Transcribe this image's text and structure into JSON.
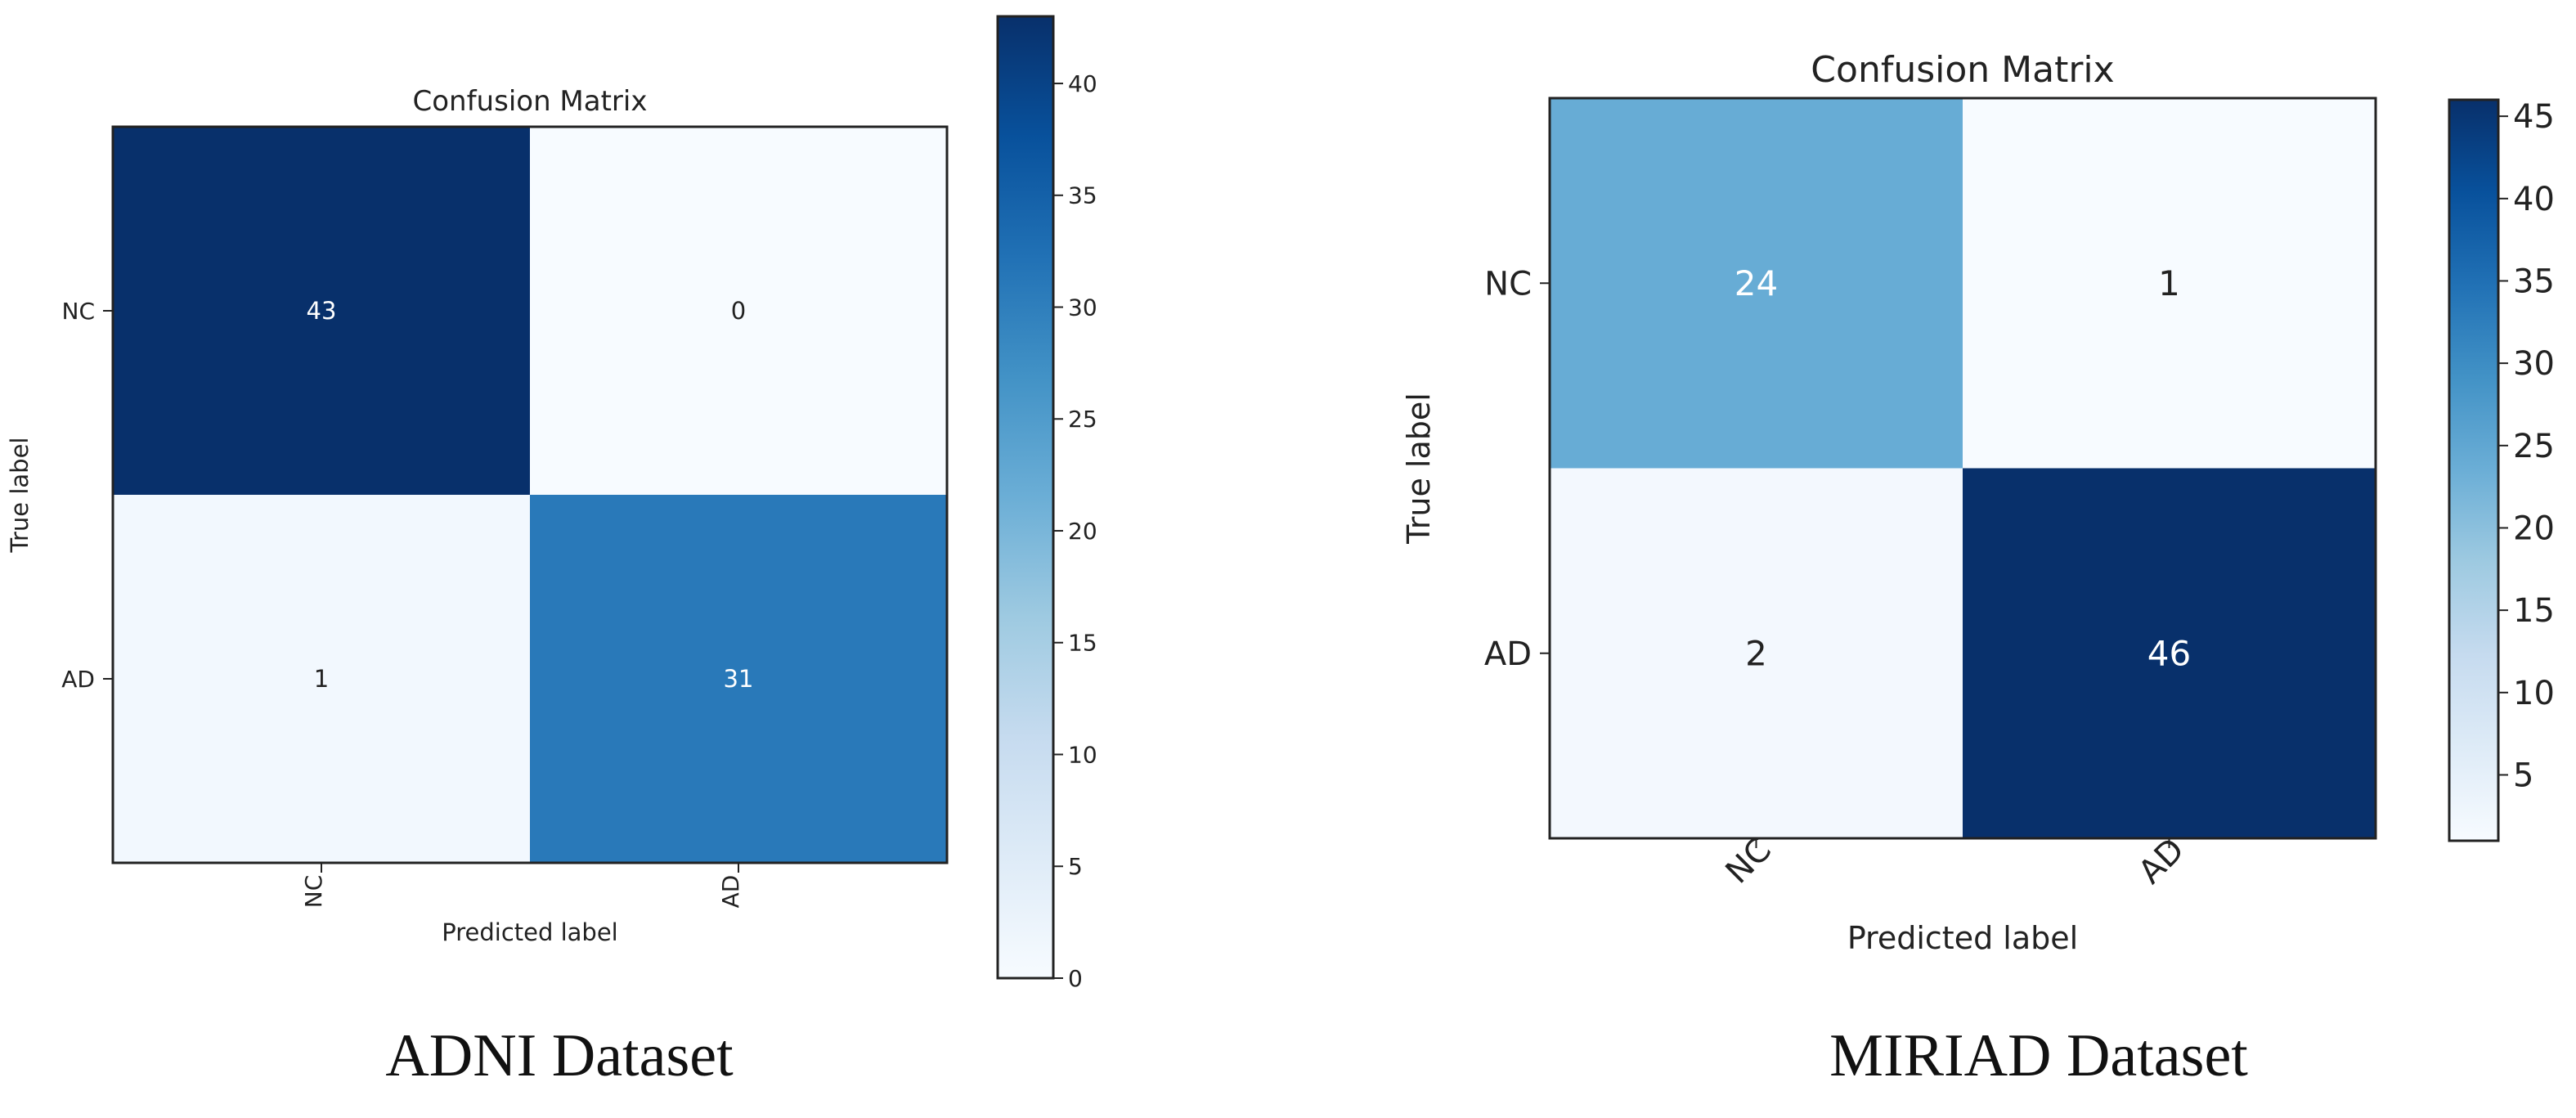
{
  "chart_data": [
    {
      "type": "heatmap",
      "title": "Confusion Matrix",
      "xlabel": "Predicted label",
      "ylabel": "True label",
      "x_categories": [
        "NC",
        "AD"
      ],
      "y_categories": [
        "NC",
        "AD"
      ],
      "values": [
        [
          43,
          0
        ],
        [
          1,
          31
        ]
      ],
      "colorbar_range": [
        0,
        43
      ],
      "colorbar_ticks": [
        0,
        5,
        10,
        15,
        20,
        25,
        30,
        35,
        40
      ],
      "colormap": "Blues",
      "xtick_rotation": 90,
      "caption": "ADNI Dataset"
    },
    {
      "type": "heatmap",
      "title": "Confusion Matrix",
      "xlabel": "Predicted label",
      "ylabel": "True label",
      "x_categories": [
        "NC",
        "AD"
      ],
      "y_categories": [
        "NC",
        "AD"
      ],
      "values": [
        [
          24,
          1
        ],
        [
          2,
          46
        ]
      ],
      "colorbar_range": [
        1,
        46
      ],
      "colorbar_ticks": [
        5,
        10,
        15,
        20,
        25,
        30,
        35,
        40,
        45
      ],
      "colormap": "Blues",
      "xtick_rotation": 45,
      "caption": "MIRIAD Dataset"
    }
  ]
}
